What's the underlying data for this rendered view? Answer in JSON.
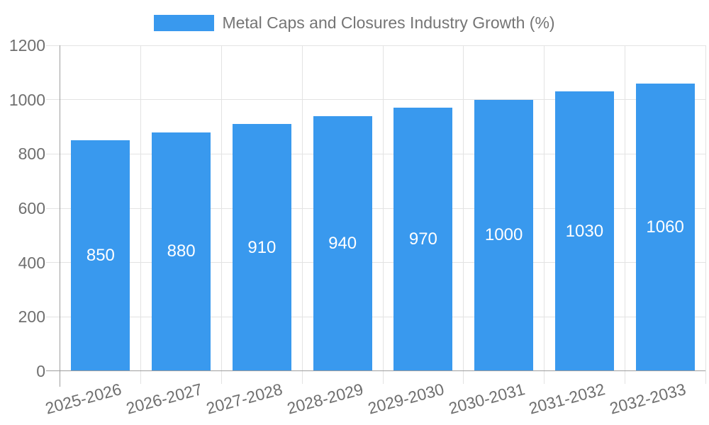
{
  "chart_data": {
    "type": "bar",
    "title": "Metal Caps and Closures Industry Growth (%)",
    "categories": [
      "2025-2026",
      "2026-2027",
      "2027-2028",
      "2028-2029",
      "2029-2030",
      "2030-2031",
      "2031-2032",
      "2032-2033"
    ],
    "series": [
      {
        "name": "Metal Caps and Closures Industry Growth (%)",
        "values": [
          850,
          880,
          910,
          940,
          970,
          1000,
          1030,
          1060
        ]
      }
    ],
    "value_labels": [
      850,
      880,
      910,
      940,
      970,
      1000,
      1030,
      1060
    ],
    "xlabel": "",
    "ylabel": "",
    "ylim": [
      0,
      1200
    ],
    "yticks": [
      0,
      200,
      400,
      600,
      800,
      1000,
      1200
    ],
    "grid": "both",
    "legend_position": "top",
    "x_label_rotation_deg": -15,
    "value_label_position": "inside-center"
  },
  "colors": {
    "bar": "#3999EE",
    "grid": "#E3E3E3",
    "axis": "#9E9E9E",
    "tick_text": "#6F6F6F",
    "title_text": "#757575",
    "value_label": "#FFFFFF",
    "background": "#FFFFFF"
  }
}
